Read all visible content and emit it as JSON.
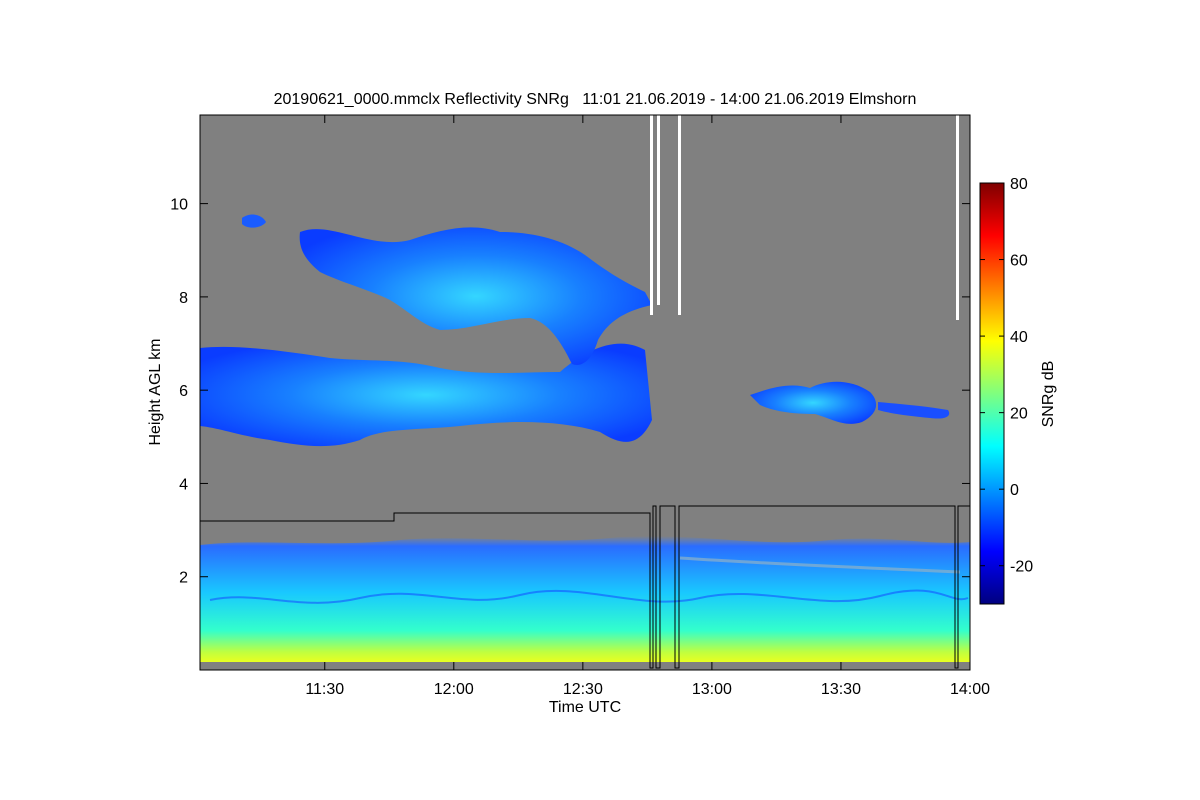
{
  "chart_data": {
    "type": "heatmap",
    "title": "20190621_0000.mmclx Reflectivity SNRg   11:01 21.06.2019 - 14:00 21.06.2019 Elmshorn",
    "xlabel": "Time UTC",
    "ylabel": "Height AGL km",
    "colorbar_label": "SNRg dB",
    "x_range": [
      "11:01",
      "14:00"
    ],
    "x_ticks": [
      "11:30",
      "12:00",
      "12:30",
      "13:00",
      "13:30",
      "14:00"
    ],
    "y_range_km": [
      0,
      11.9
    ],
    "y_ticks": [
      2,
      4,
      6,
      8,
      10
    ],
    "colorbar_range_db": [
      -30,
      80
    ],
    "colorbar_ticks": [
      -20,
      0,
      20,
      40,
      60,
      80
    ],
    "colormap": "jet",
    "background_color": "#808080",
    "features": [
      {
        "layer": "boundary layer clutter",
        "height_km": [
          0,
          2.8
        ],
        "time": [
          "11:01",
          "14:00"
        ],
        "snr_db": [
          -15,
          40
        ]
      },
      {
        "layer": "mid-level cloud",
        "height_km": [
          4.8,
          7.0
        ],
        "time": [
          "11:01",
          "12:50"
        ],
        "snr_db": [
          -20,
          15
        ]
      },
      {
        "layer": "upper cloud",
        "height_km": [
          6.5,
          10.2
        ],
        "time": [
          "11:10",
          "12:47"
        ],
        "snr_db": [
          -20,
          15
        ]
      },
      {
        "layer": "mid-level cloud patches",
        "height_km": [
          5.2,
          6.3
        ],
        "time": [
          "13:08",
          "13:58"
        ],
        "snr_db": [
          -20,
          10
        ]
      }
    ],
    "overlay_line": {
      "color": "#000000",
      "height_km": [
        3.3,
        3.6
      ],
      "steps": [
        {
          "time": "11:01",
          "height_km": 3.25
        },
        {
          "time": "11:46",
          "height_km": 3.4
        },
        {
          "time": "12:47",
          "height_km": 3.6
        }
      ],
      "drops_to_zero_at": [
        "12:47",
        "12:49",
        "12:53",
        "13:58"
      ]
    },
    "data_gaps_white": [
      "12:46",
      "12:48",
      "12:52",
      "13:58"
    ]
  }
}
